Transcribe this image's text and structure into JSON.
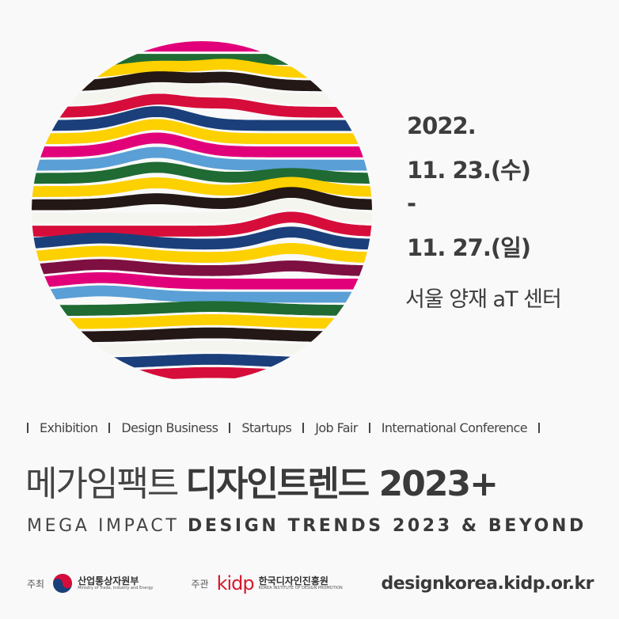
{
  "emblem": {
    "stripe_colors": [
      "#e2007a",
      "#1f6b33",
      "#fdd000",
      "#231815",
      "#f5f5ef",
      "#d60d3a",
      "#1b3f7b",
      "#fdd000",
      "#e2007a",
      "#5a9fd6",
      "#1f6b33",
      "#fdd000",
      "#231815",
      "#f5f5ef",
      "#d60d3a",
      "#1b3f7b",
      "#fdd000",
      "#7d0f41",
      "#e2007a",
      "#5a9fd6",
      "#1f6b33",
      "#fdd000",
      "#231815",
      "#f5f5ef",
      "#1b3f7b",
      "#d60d3a"
    ]
  },
  "event": {
    "year": "2022.",
    "start": "11. 23.(수)",
    "dash": "-",
    "end": "11. 27.(일)",
    "venue": "서울 양재 aT 센터"
  },
  "programs": [
    "Exhibition",
    "Design Business",
    "Startups",
    "Job Fair",
    "International Conference"
  ],
  "title": {
    "light": "메가임팩트",
    "bold": "디자인트렌드 2023+"
  },
  "subtitle": {
    "light": "MEGA IMPACT",
    "bold": "DESIGN TRENDS 2023 & BEYOND"
  },
  "footer": {
    "host_label": "주최",
    "host_name": "산업통상자원부",
    "host_sub": "Ministry of Trade, Industry and Energy",
    "organizer_label": "주관",
    "organizer_logo": "kidp",
    "organizer_name": "한국디자인진흥원",
    "organizer_sub": "KOREA INSTITUTE OF DESIGN PROMOTION",
    "url": "designkorea.kidp.or.kr"
  },
  "colors": {
    "text": "#3d3d3d",
    "kidp_red": "#d7192e",
    "background": "#f9f9f9"
  }
}
